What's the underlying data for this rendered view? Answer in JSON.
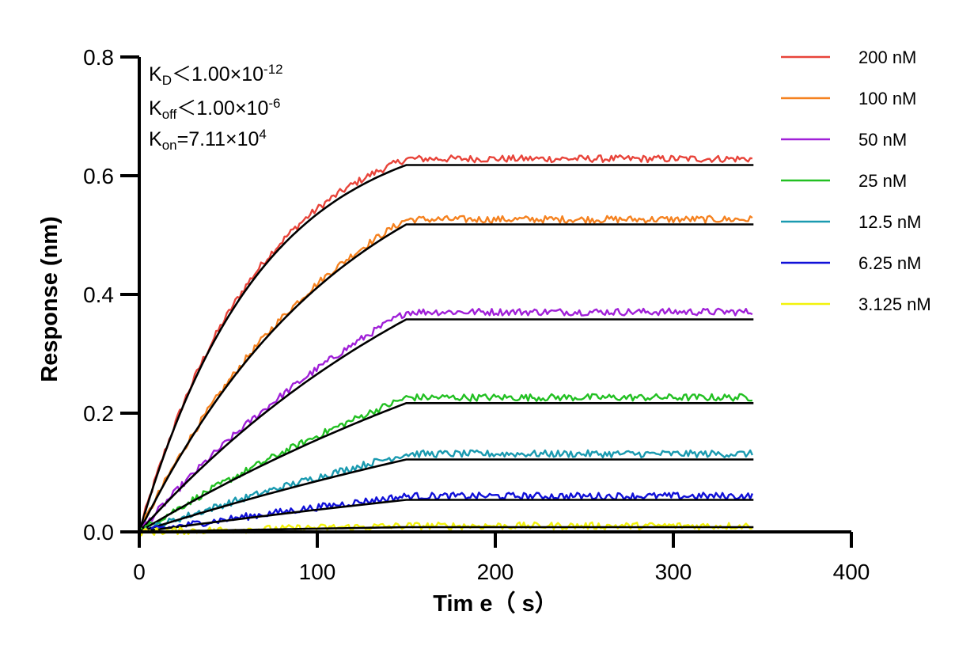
{
  "chart_data": {
    "type": "line",
    "xlabel": "Tim e（ s）",
    "ylabel": "Response (nm)",
    "xlim": [
      0,
      400
    ],
    "ylim": [
      0,
      0.8
    ],
    "xticks": [
      0,
      100,
      200,
      300,
      400
    ],
    "yticks": [
      0.0,
      0.2,
      0.4,
      0.6,
      0.8
    ],
    "xtick_labels": [
      "0",
      "100",
      "200",
      "300",
      "400"
    ],
    "ytick_labels": [
      "0.0",
      "0.2",
      "0.4",
      "0.6",
      "0.8"
    ],
    "grid": false,
    "legend_position": "right",
    "association_end": 150,
    "x_end": 345,
    "fit_color": "#000000",
    "annotations": {
      "kd_label": "K",
      "kd_sub": "D",
      "kd_value": "＜1.00×10",
      "kd_exp": "-12",
      "koff_label": "K",
      "koff_sub": "off",
      "koff_value": "＜1.00×10",
      "koff_exp": "-6",
      "kon_label": "K",
      "kon_sub": "on",
      "kon_value": "=7.11×10",
      "kon_exp": "4"
    },
    "series": [
      {
        "name": "200 nM",
        "color": "#e8443a",
        "fit_plateau": 0.618,
        "data_plateau": 0.628,
        "k": 0.0148
      },
      {
        "name": "100 nM",
        "color": "#f58220",
        "fit_plateau": 0.518,
        "data_plateau": 0.526,
        "k": 0.0085
      },
      {
        "name": "50 nM",
        "color": "#a020d8",
        "fit_plateau": 0.358,
        "data_plateau": 0.37,
        "k": 0.0048
      },
      {
        "name": "25 nM",
        "color": "#22c022",
        "fit_plateau": 0.217,
        "data_plateau": 0.226,
        "k": 0.003
      },
      {
        "name": "12.5 nM",
        "color": "#1a9ab0",
        "fit_plateau": 0.122,
        "data_plateau": 0.131,
        "k": 0.0022
      },
      {
        "name": "6.25 nM",
        "color": "#1010d8",
        "fit_plateau": 0.054,
        "data_plateau": 0.06,
        "k": 0.0015
      },
      {
        "name": "3.125 nM",
        "color": "#f2f20a",
        "fit_plateau": 0.008,
        "data_plateau": 0.01,
        "k": 0.001
      }
    ]
  }
}
